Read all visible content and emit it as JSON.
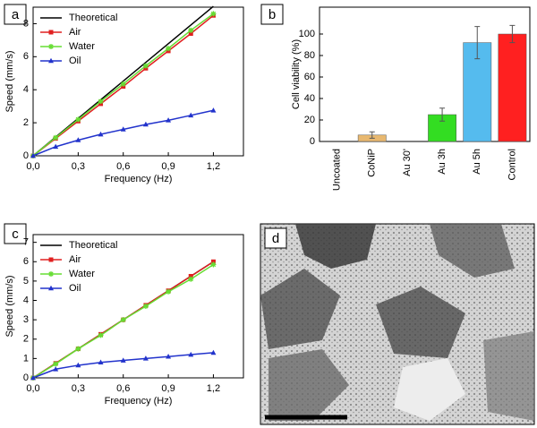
{
  "chart_data": [
    {
      "type": "line",
      "label": "a",
      "xlabel": "Frequency (Hz)",
      "ylabel": "Speed (mm/s)",
      "xlim": [
        0,
        1.4
      ],
      "ylim": [
        0,
        9
      ],
      "xticks": [
        {
          "value": 0,
          "label": "0,0"
        },
        {
          "value": 0.3,
          "label": "0,3"
        },
        {
          "value": 0.6,
          "label": "0,6"
        },
        {
          "value": 0.9,
          "label": "0,9"
        },
        {
          "value": 1.2,
          "label": "1,2"
        }
      ],
      "yticks": [
        0,
        2,
        4,
        6,
        8
      ],
      "legend": "upper left",
      "series": [
        {
          "name": "Theoretical",
          "color": "#000000",
          "marker": null,
          "x": [
            0,
            1.2
          ],
          "values": [
            0,
            9.05
          ]
        },
        {
          "name": "Air",
          "color": "#e02020",
          "marker": "square",
          "x": [
            0,
            0.15,
            0.3,
            0.45,
            0.6,
            0.75,
            0.9,
            1.05,
            1.2
          ],
          "values": [
            0,
            1.05,
            2.1,
            3.15,
            4.2,
            5.3,
            6.35,
            7.4,
            8.5
          ]
        },
        {
          "name": "Water",
          "color": "#66dd33",
          "marker": "star",
          "x": [
            0,
            0.15,
            0.3,
            0.45,
            0.6,
            0.75,
            0.9,
            1.05,
            1.2
          ],
          "values": [
            0,
            1.1,
            2.2,
            3.3,
            4.35,
            5.45,
            6.5,
            7.6,
            8.6
          ]
        },
        {
          "name": "Oil",
          "color": "#2233cc",
          "marker": "triangle",
          "x": [
            0,
            0.15,
            0.3,
            0.45,
            0.6,
            0.75,
            0.9,
            1.05,
            1.2
          ],
          "values": [
            0,
            0.55,
            0.95,
            1.3,
            1.6,
            1.9,
            2.15,
            2.45,
            2.75
          ]
        }
      ]
    },
    {
      "type": "bar",
      "label": "b",
      "ylabel": "Cell viability (%)",
      "categories": [
        "Uncoated",
        "CoNiP",
        "Au 30'",
        "Au 3h",
        "Au 5h",
        "Control"
      ],
      "values": [
        0,
        6,
        0,
        25,
        92,
        100
      ],
      "errors": [
        0,
        3,
        0,
        6,
        15,
        8
      ],
      "colors": [
        "#e8b870",
        "#e8b870",
        "#e8b870",
        "#33dd22",
        "#55bbee",
        "#ff2020"
      ],
      "ylim": [
        0,
        125
      ],
      "yticks": [
        0,
        20,
        40,
        60,
        80,
        100
      ]
    },
    {
      "type": "line",
      "label": "c",
      "xlabel": "Frequency (Hz)",
      "ylabel": "Speed (mm/s)",
      "xlim": [
        0,
        1.4
      ],
      "ylim": [
        0,
        7.4
      ],
      "xticks": [
        {
          "value": 0,
          "label": "0,0"
        },
        {
          "value": 0.3,
          "label": "0,3"
        },
        {
          "value": 0.6,
          "label": "0,6"
        },
        {
          "value": 0.9,
          "label": "0,9"
        },
        {
          "value": 1.2,
          "label": "1,2"
        }
      ],
      "yticks": [
        0,
        1,
        2,
        3,
        4,
        5,
        6,
        7
      ],
      "legend": "upper left",
      "series": [
        {
          "name": "Theoretical",
          "color": "#000000",
          "marker": null,
          "x": [
            0,
            1.2
          ],
          "values": [
            0,
            6.0
          ]
        },
        {
          "name": "Air",
          "color": "#e02020",
          "marker": "square",
          "x": [
            0,
            0.15,
            0.3,
            0.45,
            0.6,
            0.75,
            0.9,
            1.05,
            1.2
          ],
          "values": [
            0,
            0.75,
            1.5,
            2.25,
            3.0,
            3.75,
            4.5,
            5.25,
            6.0
          ]
        },
        {
          "name": "Water",
          "color": "#66dd33",
          "marker": "star",
          "x": [
            0,
            0.15,
            0.3,
            0.45,
            0.6,
            0.75,
            0.9,
            1.05,
            1.2
          ],
          "values": [
            0,
            0.72,
            1.5,
            2.2,
            3.0,
            3.7,
            4.45,
            5.1,
            5.85
          ]
        },
        {
          "name": "Oil",
          "color": "#2233cc",
          "marker": "triangle",
          "x": [
            0,
            0.15,
            0.3,
            0.45,
            0.6,
            0.75,
            0.9,
            1.05,
            1.2
          ],
          "values": [
            0,
            0.45,
            0.65,
            0.8,
            0.9,
            1.0,
            1.1,
            1.2,
            1.3
          ]
        }
      ]
    }
  ],
  "panel_d": {
    "label": "d"
  }
}
